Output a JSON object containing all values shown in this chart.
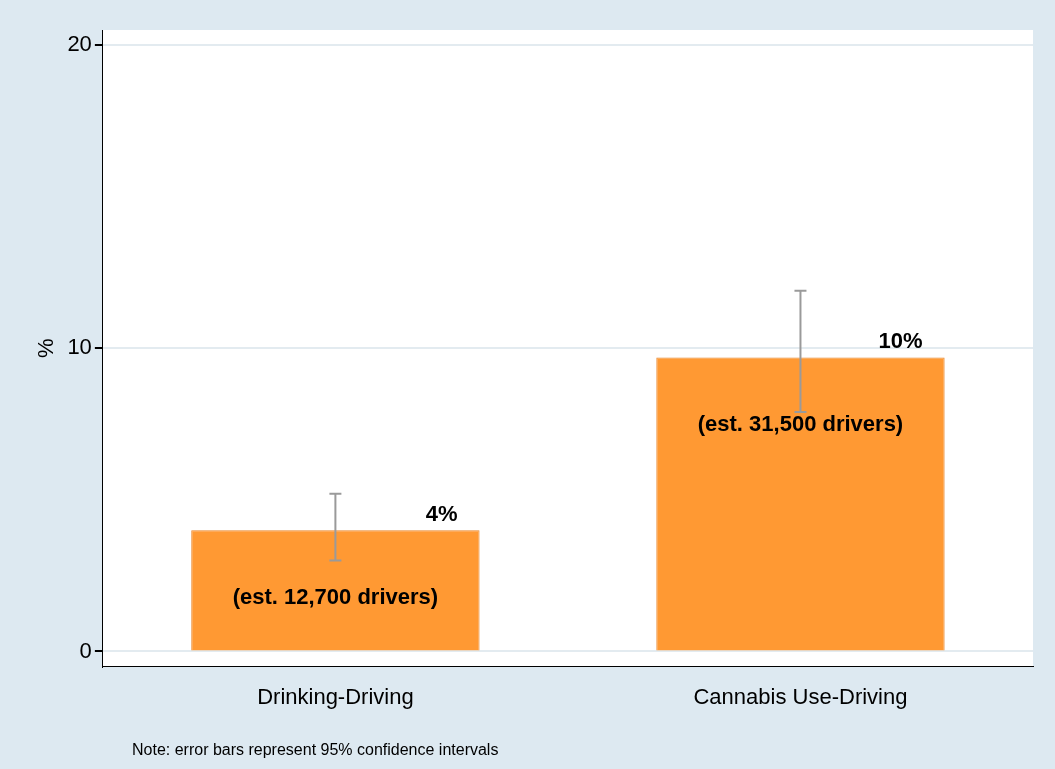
{
  "chart_data": {
    "type": "bar",
    "ylabel": "%",
    "categories": [
      "Drinking-Driving",
      "Cannabis Use-Driving"
    ],
    "values": [
      4.0,
      9.7
    ],
    "color": "#ff9933",
    "errors": [
      [
        3.0,
        5.2
      ],
      [
        7.9,
        11.9
      ]
    ],
    "value_labels": [
      "4%",
      "10%"
    ],
    "annotations": [
      "(est. 12,700 drivers)",
      "(est. 31,500 drivers)",
      "Note: error bars represent 95% confidence intervals"
    ],
    "ylim": [
      -0.5,
      20.5
    ],
    "yticks": [
      0,
      10,
      20
    ],
    "grid": "y",
    "legend": false
  }
}
